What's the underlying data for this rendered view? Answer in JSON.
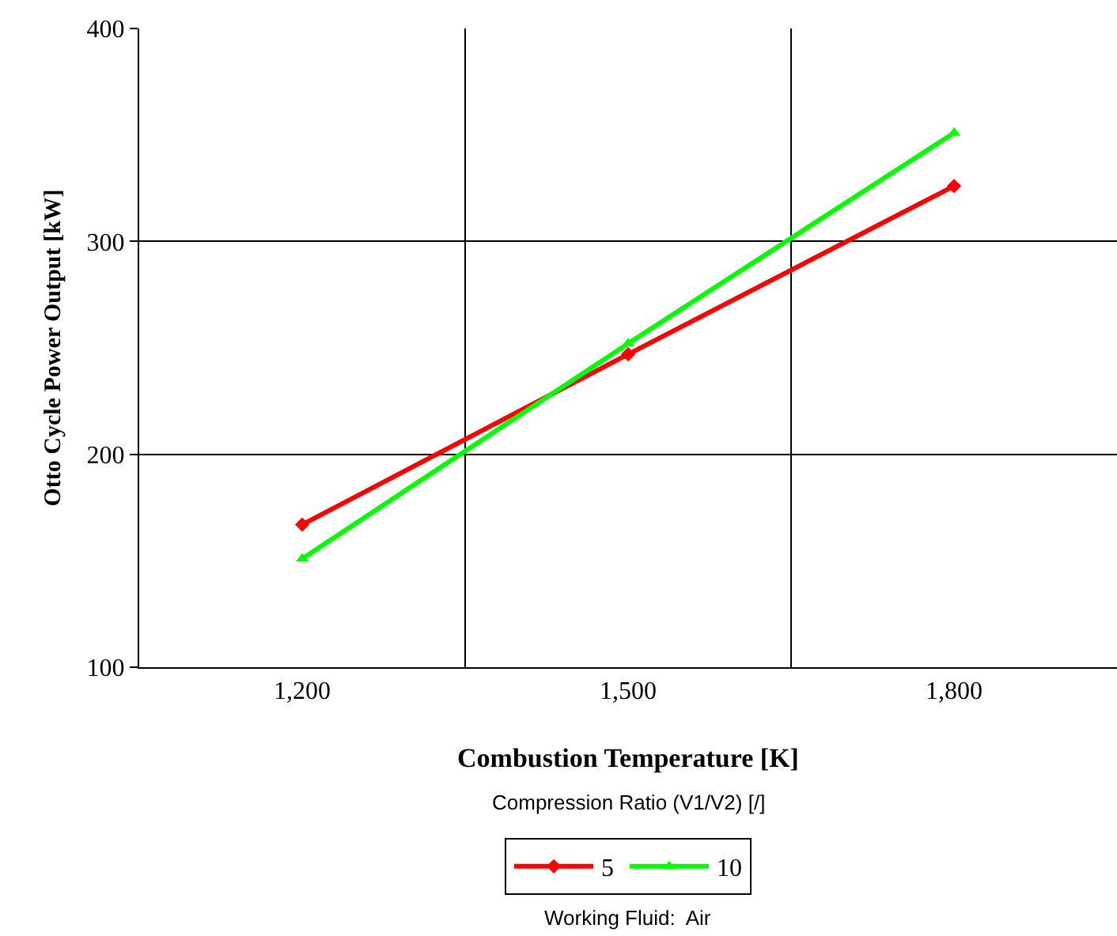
{
  "chart_data": {
    "type": "line",
    "xlabel": "Combustion Temperature [K]",
    "ylabel": "Otto Cycle Power Output [kW]",
    "legend_title": "Compression Ratio (V1/V2) [/]",
    "categories": [
      "1,200",
      "1,500",
      "1,800"
    ],
    "series": [
      {
        "name": "5",
        "color": "#ff0000",
        "marker": "diamond",
        "values": [
          167,
          247,
          326
        ]
      },
      {
        "name": "10",
        "color": "#00ff00",
        "marker": "triangle",
        "values": [
          151,
          252,
          351
        ]
      }
    ],
    "ylim": [
      100,
      400
    ],
    "yticks": [
      100,
      200,
      300,
      400
    ],
    "grid": true,
    "legend": "bottom",
    "line_style": "solid",
    "annotations": [
      "Working Fluid:  Air"
    ]
  }
}
